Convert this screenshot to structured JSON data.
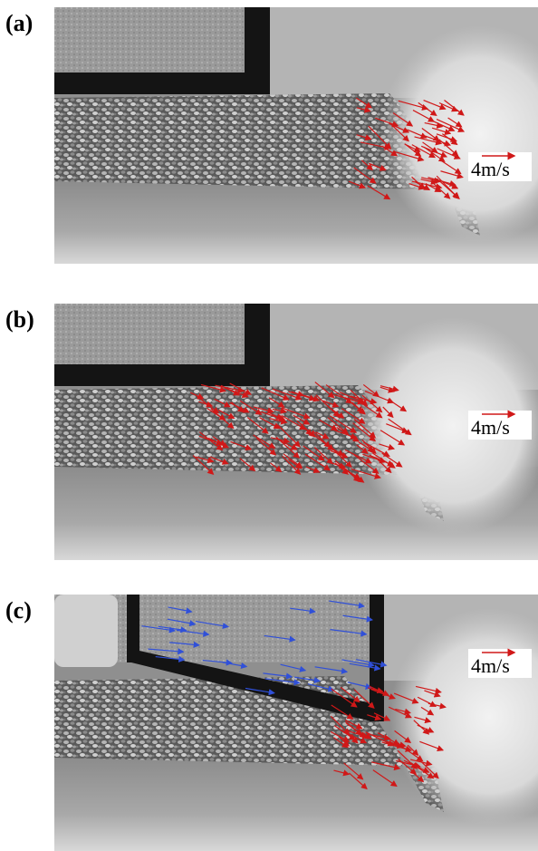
{
  "panels": [
    {
      "label": "(a)",
      "scale_label": "4m/s"
    },
    {
      "label": "(b)",
      "scale_label": "4m/s"
    },
    {
      "label": "(c)",
      "scale_label": "4m/s"
    }
  ]
}
